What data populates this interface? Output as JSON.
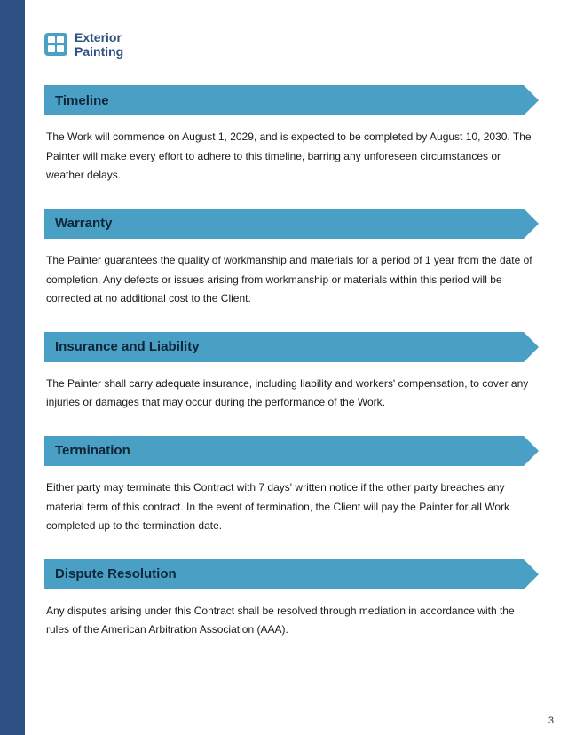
{
  "brand": {
    "line1": "Exterior",
    "line2": "Painting"
  },
  "sections": [
    {
      "title": "Timeline",
      "body": "The Work will commence on August 1, 2029, and is expected to be completed by August 10, 2030. The Painter will make every effort to adhere to this timeline, barring any unforeseen circumstances or weather delays."
    },
    {
      "title": "Warranty",
      "body": "The Painter guarantees the quality of workmanship and materials for a period of 1 year from the date of completion. Any defects or issues arising from workmanship or materials within this period will be corrected at no additional cost to the Client."
    },
    {
      "title": "Insurance and Liability",
      "body": "The Painter shall carry adequate insurance, including liability and workers' compensation, to cover any injuries or damages that may occur during the performance of the Work."
    },
    {
      "title": "Termination",
      "body": "Either party may terminate this Contract with 7 days' written notice if the other party breaches any material term of this contract. In the event of termination, the Client will pay the Painter for all Work completed up to the termination date."
    },
    {
      "title": "Dispute Resolution",
      "body": "Any disputes arising under this Contract shall be resolved through mediation in accordance with the rules of the American Arbitration Association (AAA)."
    }
  ],
  "pageNumber": "3",
  "colors": {
    "leftBar": "#2e5082",
    "band": "#4a9fc4",
    "titleText": "#0e2638",
    "bodyText": "#1a1a1a",
    "background": "#ffffff"
  }
}
